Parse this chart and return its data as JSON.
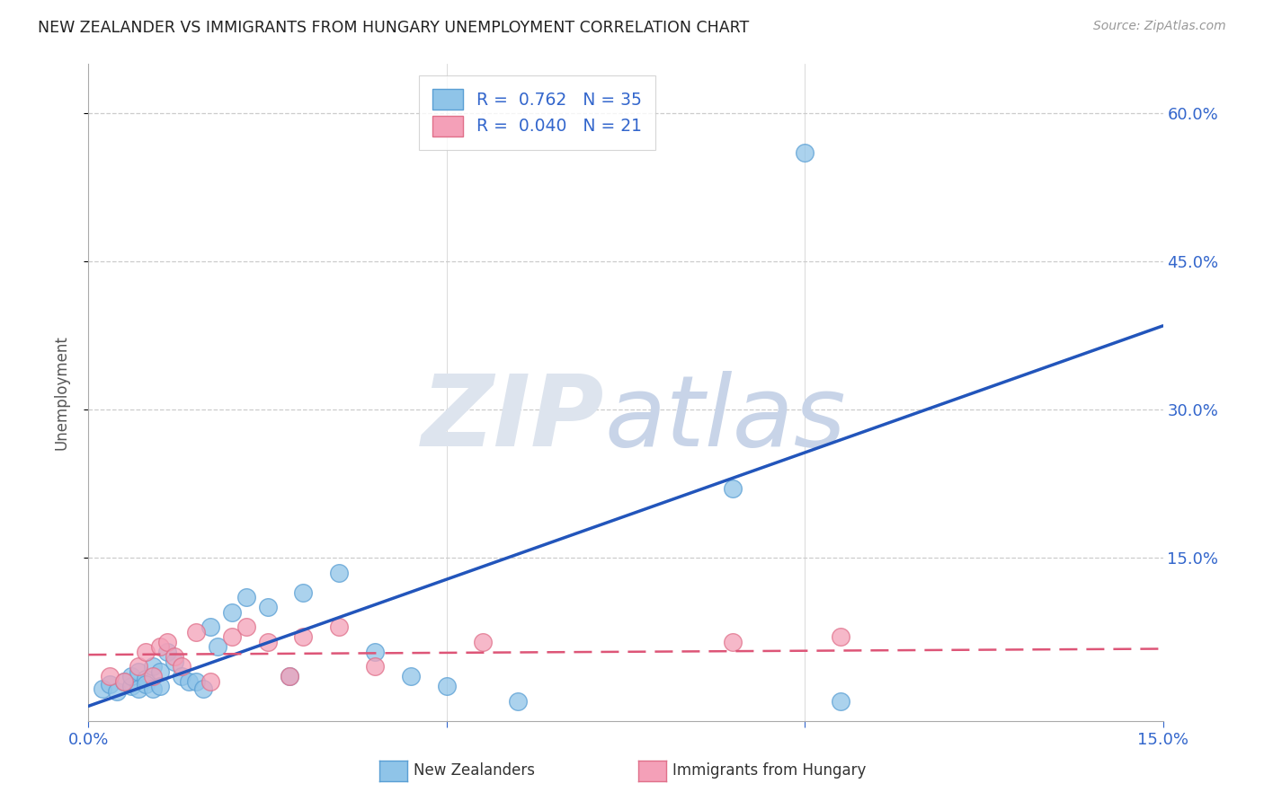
{
  "title": "NEW ZEALANDER VS IMMIGRANTS FROM HUNGARY UNEMPLOYMENT CORRELATION CHART",
  "source": "Source: ZipAtlas.com",
  "ylabel": "Unemployment",
  "yticks": [
    "60.0%",
    "45.0%",
    "30.0%",
    "15.0%"
  ],
  "ytick_values": [
    0.6,
    0.45,
    0.3,
    0.15
  ],
  "xrange": [
    0.0,
    0.15
  ],
  "yrange": [
    -0.015,
    0.65
  ],
  "nz_color": "#8fc4e8",
  "nz_edge_color": "#5a9fd4",
  "hu_color": "#f4a0b8",
  "hu_edge_color": "#e0708a",
  "nz_line_color": "#2255bb",
  "hu_line_color": "#dd5577",
  "legend_nz_R": "0.762",
  "legend_nz_N": "35",
  "legend_hu_R": "0.040",
  "legend_hu_N": "21",
  "nz_x": [
    0.002,
    0.003,
    0.004,
    0.005,
    0.006,
    0.006,
    0.007,
    0.007,
    0.008,
    0.008,
    0.009,
    0.009,
    0.01,
    0.01,
    0.011,
    0.012,
    0.013,
    0.014,
    0.015,
    0.016,
    0.017,
    0.018,
    0.02,
    0.022,
    0.025,
    0.028,
    0.03,
    0.035,
    0.04,
    0.045,
    0.05,
    0.06,
    0.09,
    0.1,
    0.105
  ],
  "nz_y": [
    0.018,
    0.022,
    0.015,
    0.025,
    0.02,
    0.03,
    0.035,
    0.018,
    0.028,
    0.022,
    0.04,
    0.018,
    0.035,
    0.02,
    0.055,
    0.045,
    0.03,
    0.025,
    0.025,
    0.018,
    0.08,
    0.06,
    0.095,
    0.11,
    0.1,
    0.03,
    0.115,
    0.135,
    0.055,
    0.03,
    0.02,
    0.005,
    0.22,
    0.56,
    0.005
  ],
  "hu_x": [
    0.003,
    0.005,
    0.007,
    0.008,
    0.009,
    0.01,
    0.011,
    0.012,
    0.013,
    0.015,
    0.017,
    0.02,
    0.022,
    0.025,
    0.028,
    0.03,
    0.035,
    0.04,
    0.055,
    0.09,
    0.105
  ],
  "hu_y": [
    0.03,
    0.025,
    0.04,
    0.055,
    0.03,
    0.06,
    0.065,
    0.05,
    0.04,
    0.075,
    0.025,
    0.07,
    0.08,
    0.065,
    0.03,
    0.07,
    0.08,
    0.04,
    0.065,
    0.065,
    0.07
  ],
  "nz_line_x0": 0.0,
  "nz_line_y0": 0.0,
  "nz_line_x1": 0.15,
  "nz_line_y1": 0.385,
  "hu_line_x0": 0.0,
  "hu_line_y0": 0.052,
  "hu_line_x1": 0.15,
  "hu_line_y1": 0.058
}
